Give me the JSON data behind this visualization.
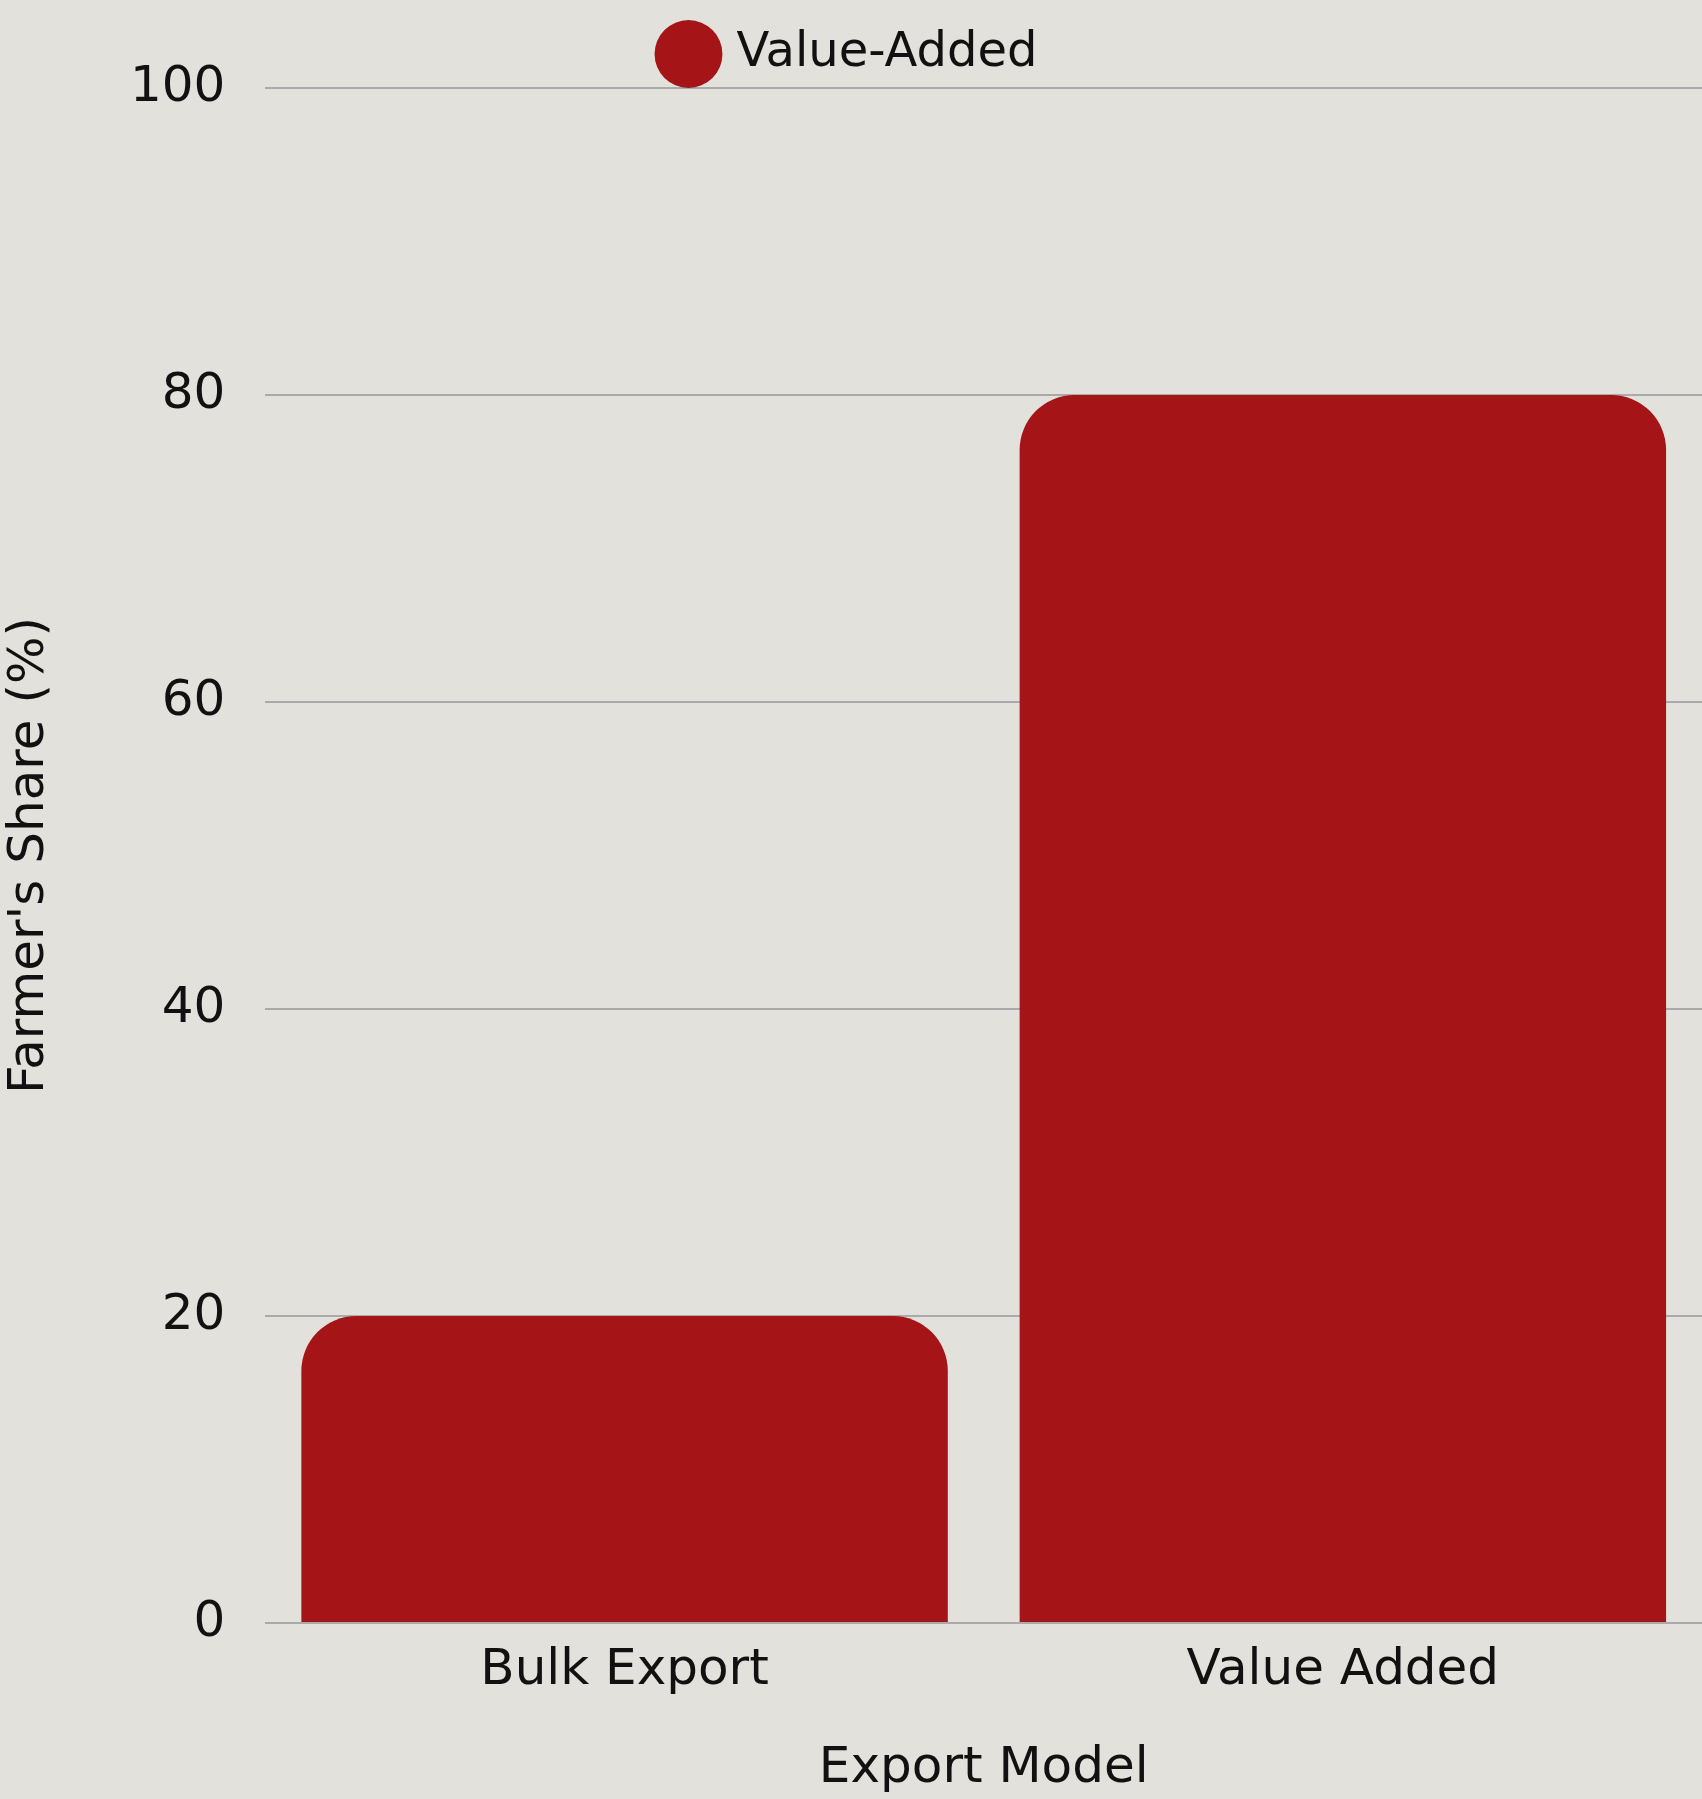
{
  "chart_data": {
    "type": "bar",
    "xlabel": "Export Model",
    "ylabel": "Farmer's Share (%)",
    "categories": [
      "Bulk Export",
      "Value Added"
    ],
    "series": [
      {
        "name": "Value-Added",
        "color": "#a51416",
        "values": [
          20,
          80
        ]
      }
    ],
    "ylim": [
      0,
      100
    ],
    "yticks": [
      0,
      20,
      40,
      60,
      80,
      100
    ],
    "grid": "y",
    "legend": "top"
  }
}
